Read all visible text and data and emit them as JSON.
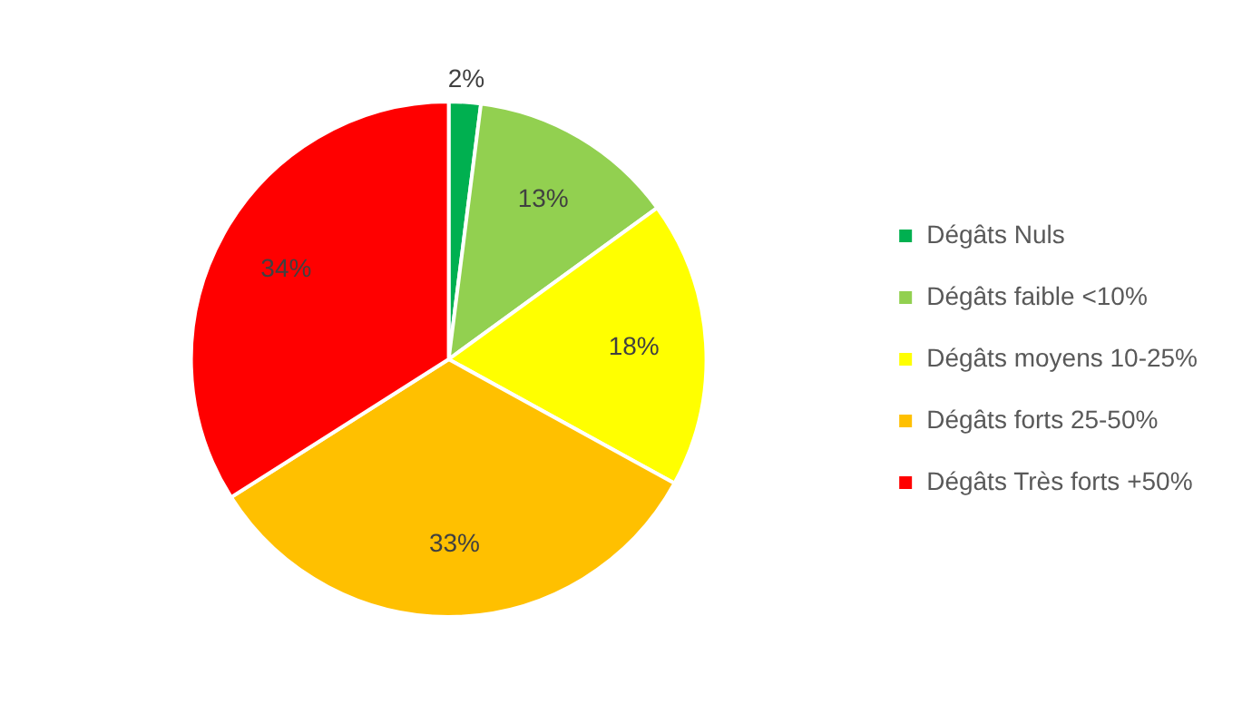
{
  "chart_data": {
    "type": "pie",
    "categories": [
      "Dégâts Nuls",
      "Dégâts faible <10%",
      "Dégâts moyens 10-25%",
      "Dégâts forts 25-50%",
      "Dégâts Très forts +50%"
    ],
    "values": [
      2,
      13,
      18,
      33,
      34
    ],
    "colors": [
      "#00b050",
      "#92d050",
      "#ffff00",
      "#ffc000",
      "#ff0000"
    ],
    "value_labels": [
      "2%",
      "13%",
      "18%",
      "33%",
      "34%"
    ],
    "legend": "right"
  }
}
